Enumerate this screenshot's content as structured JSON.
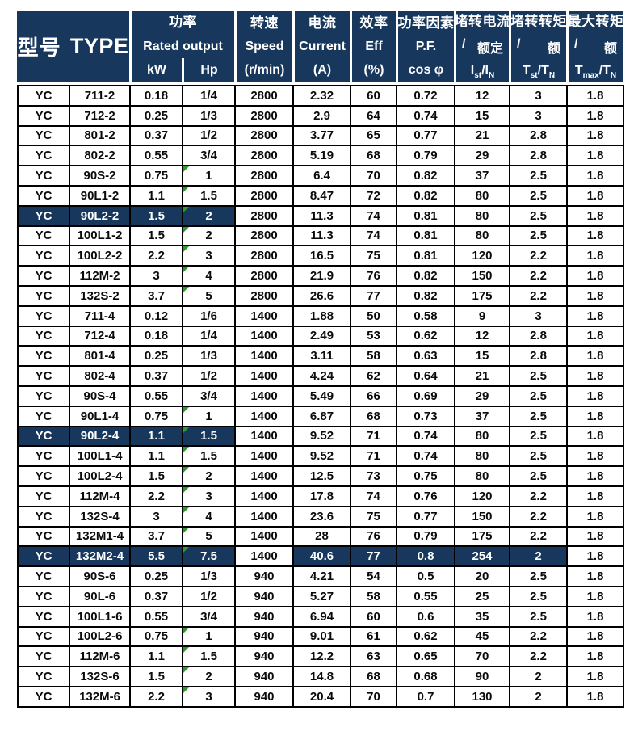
{
  "colors": {
    "header_bg": "#17375D",
    "header_text": "#ffffff",
    "body_text": "#0a0a0a",
    "grid_line": "#000000",
    "highlight_bg": "#17375D",
    "highlight_text": "#ffffff",
    "flag_green": "#2e9b2e"
  },
  "table": {
    "header": {
      "type": {
        "zh": "型号",
        "en": "TYPE"
      },
      "rated_output": {
        "zh": "功率",
        "en": "Rated output",
        "kw": "kW",
        "hp": "Hp"
      },
      "speed": {
        "zh": "转速",
        "en": "Speed",
        "unit": "(r/min)"
      },
      "current": {
        "zh": "电流",
        "en": "Current",
        "unit": "(A)"
      },
      "efficiency": {
        "zh": "效率",
        "en": "Eff",
        "unit": "(%)"
      },
      "power_factor": {
        "zh": "功率因素",
        "en": "P.F.",
        "unit": "cos φ"
      },
      "locked_rotor_current": {
        "zh": "堵转电流",
        "slash": "/",
        "label": "额定",
        "unit_sub": "I_st_/I_N_"
      },
      "locked_rotor_torque": {
        "zh": "堵转转矩",
        "slash": "/",
        "label": "额",
        "unit_sub": "T_st_/T_N_"
      },
      "max_torque": {
        "zh": "最大转矩",
        "slash": "/",
        "label": "额",
        "unit_sub": "T_max_/T_N_"
      }
    },
    "rows": [
      {
        "cells": [
          "YC",
          "711-2",
          "0.18",
          "1/4",
          "2800",
          "2.32",
          "60",
          "0.72",
          "12",
          "3",
          "1.8"
        ],
        "hl": [],
        "flag": false
      },
      {
        "cells": [
          "YC",
          "712-2",
          "0.25",
          "1/3",
          "2800",
          "2.9",
          "64",
          "0.74",
          "15",
          "3",
          "1.8"
        ],
        "hl": [],
        "flag": false
      },
      {
        "cells": [
          "YC",
          "801-2",
          "0.37",
          "1/2",
          "2800",
          "3.77",
          "65",
          "0.77",
          "21",
          "2.8",
          "1.8"
        ],
        "hl": [],
        "flag": false
      },
      {
        "cells": [
          "YC",
          "802-2",
          "0.55",
          "3/4",
          "2800",
          "5.19",
          "68",
          "0.79",
          "29",
          "2.8",
          "1.8"
        ],
        "hl": [],
        "flag": false
      },
      {
        "cells": [
          "YC",
          "90S-2",
          "0.75",
          "1",
          "2800",
          "6.4",
          "70",
          "0.82",
          "37",
          "2.5",
          "1.8"
        ],
        "hl": [],
        "flag": true
      },
      {
        "cells": [
          "YC",
          "90L1-2",
          "1.1",
          "1.5",
          "2800",
          "8.47",
          "72",
          "0.82",
          "80",
          "2.5",
          "1.8"
        ],
        "hl": [],
        "flag": true
      },
      {
        "cells": [
          "YC",
          "90L2-2",
          "1.5",
          "2",
          "2800",
          "11.3",
          "74",
          "0.81",
          "80",
          "2.5",
          "1.8"
        ],
        "hl": [
          0,
          1,
          2,
          3
        ],
        "flag": true
      },
      {
        "cells": [
          "YC",
          "100L1-2",
          "1.5",
          "2",
          "2800",
          "11.3",
          "74",
          "0.81",
          "80",
          "2.5",
          "1.8"
        ],
        "hl": [],
        "flag": true
      },
      {
        "cells": [
          "YC",
          "100L2-2",
          "2.2",
          "3",
          "2800",
          "16.5",
          "75",
          "0.81",
          "120",
          "2.2",
          "1.8"
        ],
        "hl": [],
        "flag": true
      },
      {
        "cells": [
          "YC",
          "112M-2",
          "3",
          "4",
          "2800",
          "21.9",
          "76",
          "0.82",
          "150",
          "2.2",
          "1.8"
        ],
        "hl": [],
        "flag": true
      },
      {
        "cells": [
          "YC",
          "132S-2",
          "3.7",
          "5",
          "2800",
          "26.6",
          "77",
          "0.82",
          "175",
          "2.2",
          "1.8"
        ],
        "hl": [],
        "flag": true
      },
      {
        "cells": [
          "YC",
          "711-4",
          "0.12",
          "1/6",
          "1400",
          "1.88",
          "50",
          "0.58",
          "9",
          "3",
          "1.8"
        ],
        "hl": [],
        "flag": false
      },
      {
        "cells": [
          "YC",
          "712-4",
          "0.18",
          "1/4",
          "1400",
          "2.49",
          "53",
          "0.62",
          "12",
          "2.8",
          "1.8"
        ],
        "hl": [],
        "flag": false
      },
      {
        "cells": [
          "YC",
          "801-4",
          "0.25",
          "1/3",
          "1400",
          "3.11",
          "58",
          "0.63",
          "15",
          "2.8",
          "1.8"
        ],
        "hl": [],
        "flag": false
      },
      {
        "cells": [
          "YC",
          "802-4",
          "0.37",
          "1/2",
          "1400",
          "4.24",
          "62",
          "0.64",
          "21",
          "2.5",
          "1.8"
        ],
        "hl": [],
        "flag": false
      },
      {
        "cells": [
          "YC",
          "90S-4",
          "0.55",
          "3/4",
          "1400",
          "5.49",
          "66",
          "0.69",
          "29",
          "2.5",
          "1.8"
        ],
        "hl": [],
        "flag": false
      },
      {
        "cells": [
          "YC",
          "90L1-4",
          "0.75",
          "1",
          "1400",
          "6.87",
          "68",
          "0.73",
          "37",
          "2.5",
          "1.8"
        ],
        "hl": [],
        "flag": true
      },
      {
        "cells": [
          "YC",
          "90L2-4",
          "1.1",
          "1.5",
          "1400",
          "9.52",
          "71",
          "0.74",
          "80",
          "2.5",
          "1.8"
        ],
        "hl": [
          0,
          1,
          2,
          3
        ],
        "flag": true
      },
      {
        "cells": [
          "YC",
          "100L1-4",
          "1.1",
          "1.5",
          "1400",
          "9.52",
          "71",
          "0.74",
          "80",
          "2.5",
          "1.8"
        ],
        "hl": [],
        "flag": true
      },
      {
        "cells": [
          "YC",
          "100L2-4",
          "1.5",
          "2",
          "1400",
          "12.5",
          "73",
          "0.75",
          "80",
          "2.5",
          "1.8"
        ],
        "hl": [],
        "flag": true
      },
      {
        "cells": [
          "YC",
          "112M-4",
          "2.2",
          "3",
          "1400",
          "17.8",
          "74",
          "0.76",
          "120",
          "2.2",
          "1.8"
        ],
        "hl": [],
        "flag": true
      },
      {
        "cells": [
          "YC",
          "132S-4",
          "3",
          "4",
          "1400",
          "23.6",
          "75",
          "0.77",
          "150",
          "2.2",
          "1.8"
        ],
        "hl": [],
        "flag": true
      },
      {
        "cells": [
          "YC",
          "132M1-4",
          "3.7",
          "5",
          "1400",
          "28",
          "76",
          "0.79",
          "175",
          "2.2",
          "1.8"
        ],
        "hl": [],
        "flag": true
      },
      {
        "cells": [
          "YC",
          "132M2-4",
          "5.5",
          "7.5",
          "1400",
          "40.6",
          "77",
          "0.8",
          "254",
          "2",
          "1.8"
        ],
        "hl": [
          0,
          1,
          2,
          3,
          5,
          6,
          7,
          8,
          9
        ],
        "flag": true
      },
      {
        "cells": [
          "YC",
          "90S-6",
          "0.25",
          "1/3",
          "940",
          "4.21",
          "54",
          "0.5",
          "20",
          "2.5",
          "1.8"
        ],
        "hl": [],
        "flag": false
      },
      {
        "cells": [
          "YC",
          "90L-6",
          "0.37",
          "1/2",
          "940",
          "5.27",
          "58",
          "0.55",
          "25",
          "2.5",
          "1.8"
        ],
        "hl": [],
        "flag": false
      },
      {
        "cells": [
          "YC",
          "100L1-6",
          "0.55",
          "3/4",
          "940",
          "6.94",
          "60",
          "0.6",
          "35",
          "2.5",
          "1.8"
        ],
        "hl": [],
        "flag": false
      },
      {
        "cells": [
          "YC",
          "100L2-6",
          "0.75",
          "1",
          "940",
          "9.01",
          "61",
          "0.62",
          "45",
          "2.2",
          "1.8"
        ],
        "hl": [],
        "flag": true
      },
      {
        "cells": [
          "YC",
          "112M-6",
          "1.1",
          "1.5",
          "940",
          "12.2",
          "63",
          "0.65",
          "70",
          "2.2",
          "1.8"
        ],
        "hl": [],
        "flag": true
      },
      {
        "cells": [
          "YC",
          "132S-6",
          "1.5",
          "2",
          "940",
          "14.8",
          "68",
          "0.68",
          "90",
          "2",
          "1.8"
        ],
        "hl": [],
        "flag": true
      },
      {
        "cells": [
          "YC",
          "132M-6",
          "2.2",
          "3",
          "940",
          "20.4",
          "70",
          "0.7",
          "130",
          "2",
          "1.8"
        ],
        "hl": [],
        "flag": true
      }
    ]
  }
}
